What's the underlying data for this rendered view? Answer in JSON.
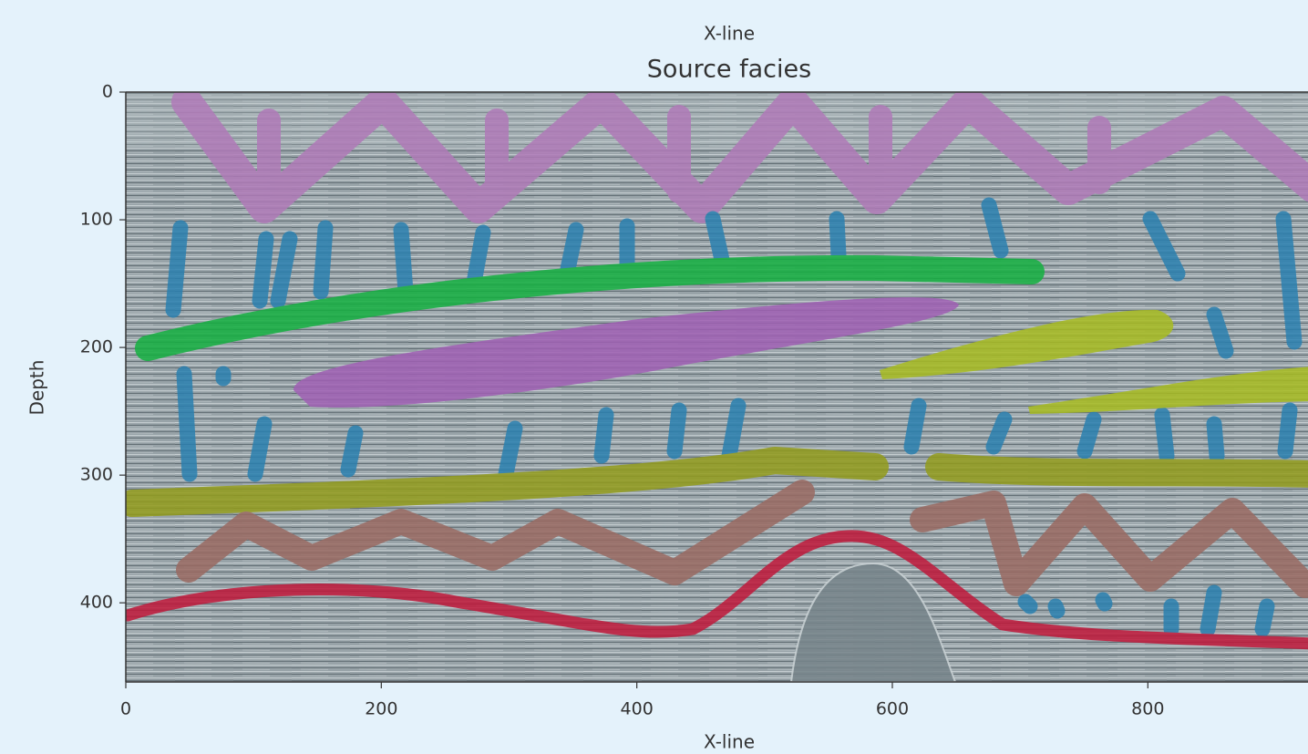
{
  "chart_data": {
    "type": "image",
    "suptitle": "X-line",
    "title": "Source facies",
    "xlabel": "X-line",
    "ylabel": "Depth",
    "xlim": [
      0,
      925
    ],
    "ylim": [
      462,
      0
    ],
    "xticks": [
      0,
      200,
      400,
      600,
      800
    ],
    "yticks": [
      0,
      100,
      200,
      300,
      400
    ]
  }
}
